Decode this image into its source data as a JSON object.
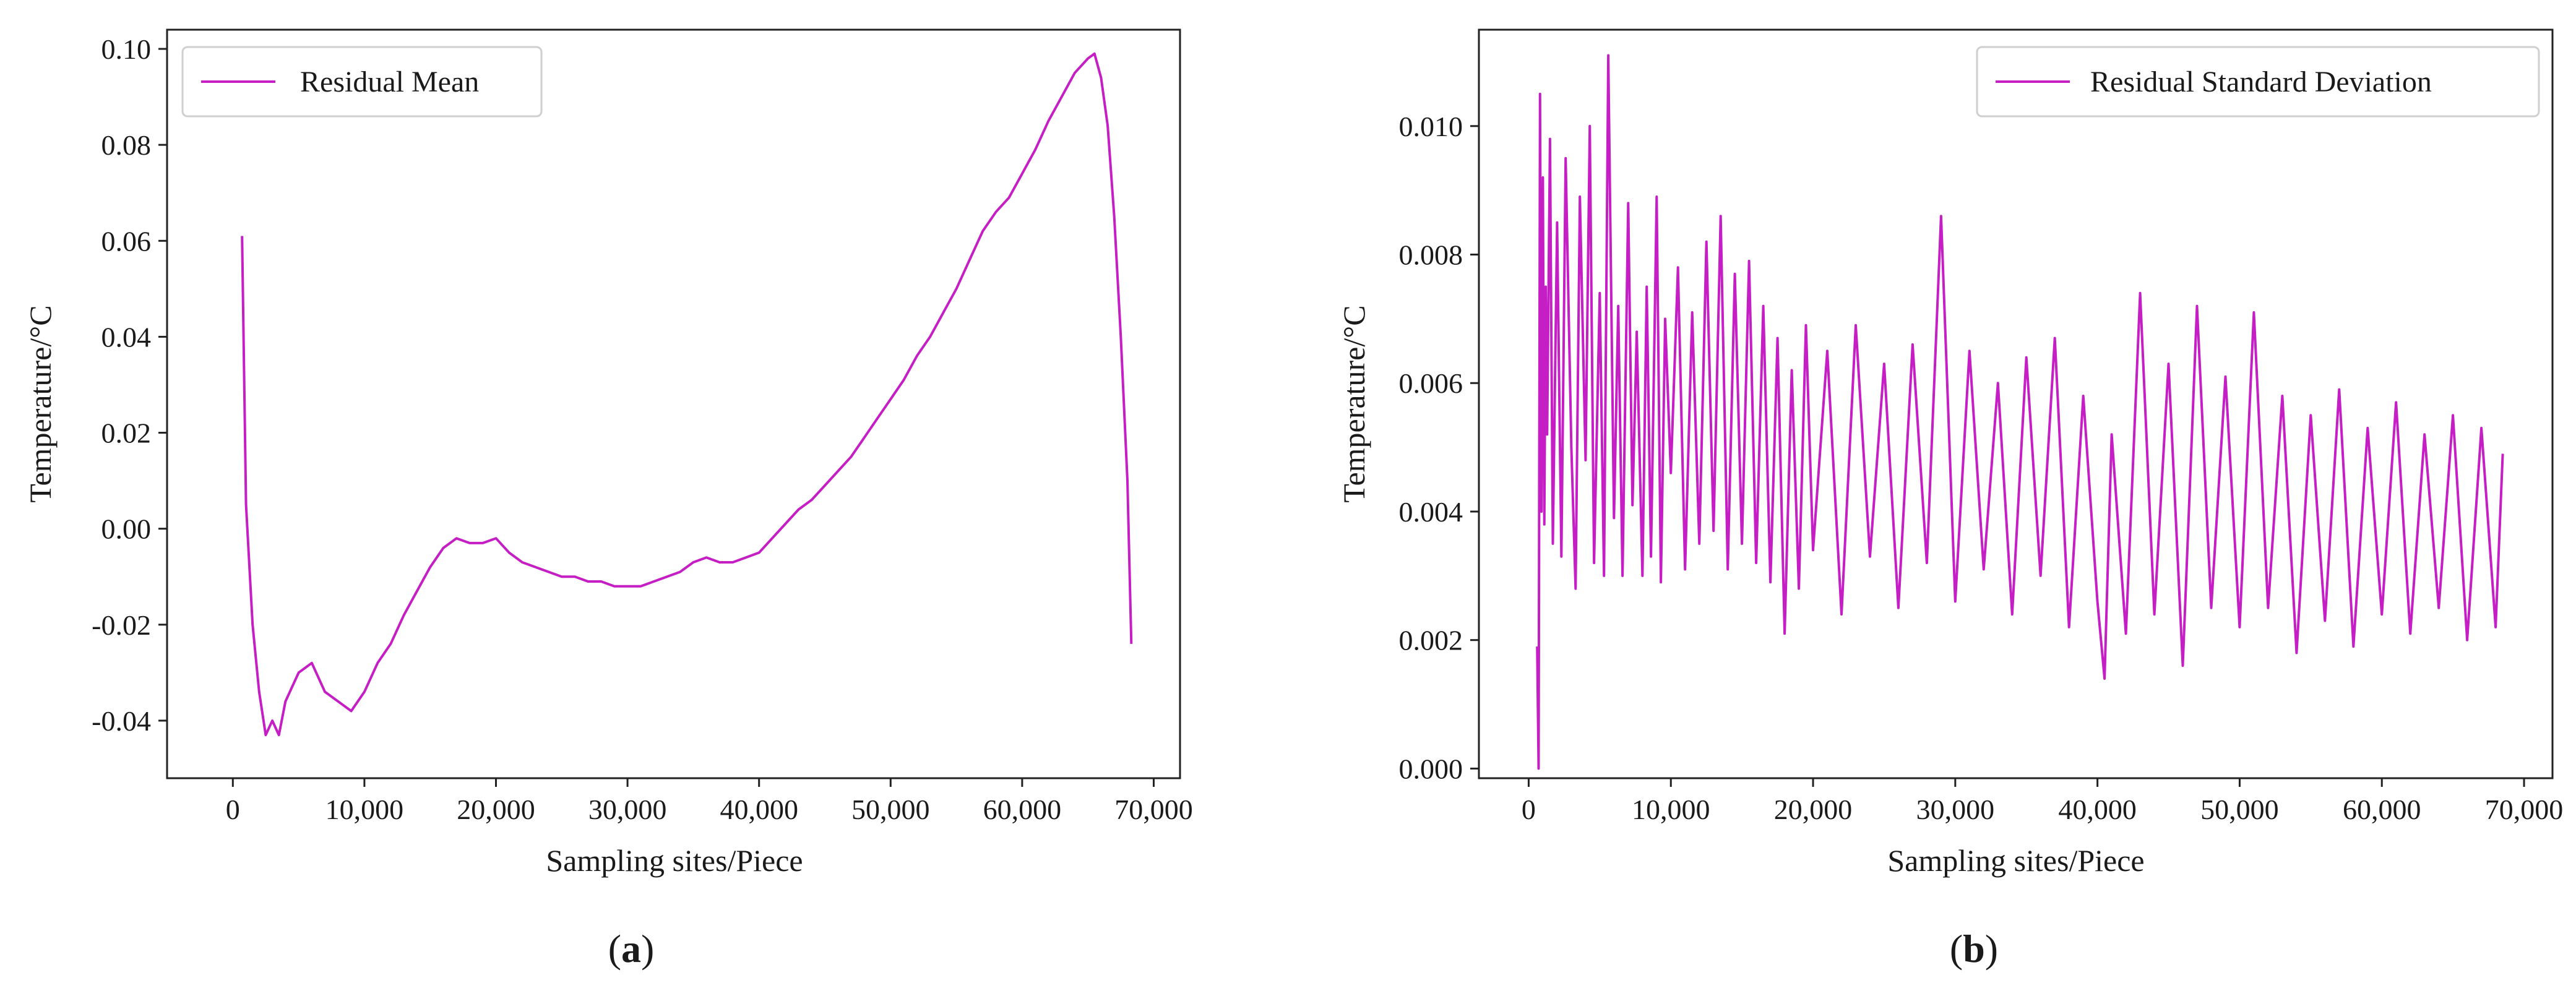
{
  "chart_data": [
    {
      "type": "line",
      "panel_caption": "a",
      "xlabel": "Sampling sites/Piece",
      "ylabel": "Temperature/°C",
      "xlim": [
        -5000,
        72000
      ],
      "ylim": [
        -0.052,
        0.104
      ],
      "xticks": [
        0,
        10000,
        20000,
        30000,
        40000,
        50000,
        60000,
        70000
      ],
      "xtick_labels": [
        "0",
        "10,000",
        "20,000",
        "30,000",
        "40,000",
        "50,000",
        "60,000",
        "70,000"
      ],
      "yticks": [
        -0.04,
        -0.02,
        0.0,
        0.02,
        0.04,
        0.06,
        0.08,
        0.1
      ],
      "ytick_labels": [
        "-0.04",
        "-0.02",
        "0.00",
        "0.02",
        "0.04",
        "0.06",
        "0.08",
        "0.10"
      ],
      "legend_position": "top-left",
      "color": "#c41ec4",
      "series": [
        {
          "name": "Residual Mean",
          "x": [
            700,
            1000,
            1500,
            2000,
            2500,
            3000,
            3500,
            4000,
            5000,
            6000,
            7000,
            8000,
            9000,
            10000,
            11000,
            12000,
            13000,
            14000,
            15000,
            16000,
            17000,
            18000,
            19000,
            20000,
            21000,
            22000,
            23000,
            24000,
            25000,
            26000,
            27000,
            28000,
            29000,
            30000,
            31000,
            32000,
            33000,
            34000,
            35000,
            36000,
            37000,
            38000,
            39000,
            40000,
            41000,
            42000,
            43000,
            44000,
            45000,
            46000,
            47000,
            48000,
            49000,
            50000,
            51000,
            52000,
            53000,
            54000,
            55000,
            56000,
            57000,
            58000,
            59000,
            60000,
            61000,
            62000,
            63000,
            64000,
            65000,
            65500,
            66000,
            66500,
            67000,
            67500,
            68000,
            68300
          ],
          "y": [
            0.061,
            0.005,
            -0.02,
            -0.034,
            -0.043,
            -0.04,
            -0.043,
            -0.036,
            -0.03,
            -0.028,
            -0.034,
            -0.036,
            -0.038,
            -0.034,
            -0.028,
            -0.024,
            -0.018,
            -0.013,
            -0.008,
            -0.004,
            -0.002,
            -0.003,
            -0.003,
            -0.002,
            -0.005,
            -0.007,
            -0.008,
            -0.009,
            -0.01,
            -0.01,
            -0.011,
            -0.011,
            -0.012,
            -0.012,
            -0.012,
            -0.011,
            -0.01,
            -0.009,
            -0.007,
            -0.006,
            -0.007,
            -0.007,
            -0.006,
            -0.005,
            -0.002,
            0.001,
            0.004,
            0.006,
            0.009,
            0.012,
            0.015,
            0.019,
            0.023,
            0.027,
            0.031,
            0.036,
            0.04,
            0.045,
            0.05,
            0.056,
            0.062,
            0.066,
            0.069,
            0.074,
            0.079,
            0.085,
            0.09,
            0.095,
            0.098,
            0.099,
            0.094,
            0.084,
            0.065,
            0.04,
            0.01,
            -0.024
          ]
        }
      ]
    },
    {
      "type": "line",
      "panel_caption": "b",
      "xlabel": "Sampling sites/Piece",
      "ylabel": "Temperature/°C",
      "xlim": [
        -3500,
        72000
      ],
      "ylim": [
        -0.00015,
        0.0115
      ],
      "xticks": [
        0,
        10000,
        20000,
        30000,
        40000,
        50000,
        60000,
        70000
      ],
      "xtick_labels": [
        "0",
        "10,000",
        "20,000",
        "30,000",
        "40,000",
        "50,000",
        "60,000",
        "70,000"
      ],
      "yticks": [
        0.0,
        0.002,
        0.004,
        0.006,
        0.008,
        0.01
      ],
      "ytick_labels": [
        "0.000",
        "0.002",
        "0.004",
        "0.006",
        "0.008",
        "0.010"
      ],
      "legend_position": "top-right",
      "color": "#c41ec4",
      "series": [
        {
          "name": "Residual Standard Deviation",
          "x": [
            600,
            700,
            800,
            900,
            1000,
            1100,
            1200,
            1300,
            1500,
            1700,
            2000,
            2300,
            2600,
            3000,
            3300,
            3600,
            4000,
            4300,
            4600,
            5000,
            5300,
            5600,
            6000,
            6300,
            6600,
            7000,
            7300,
            7600,
            8000,
            8300,
            8600,
            9000,
            9300,
            9600,
            10000,
            10500,
            11000,
            11500,
            12000,
            12500,
            13000,
            13500,
            14000,
            14500,
            15000,
            15500,
            16000,
            16500,
            17000,
            17500,
            18000,
            18500,
            19000,
            19500,
            20000,
            21000,
            22000,
            23000,
            24000,
            25000,
            26000,
            27000,
            28000,
            29000,
            30000,
            31000,
            32000,
            33000,
            34000,
            35000,
            36000,
            37000,
            38000,
            39000,
            40000,
            40500,
            41000,
            42000,
            43000,
            44000,
            45000,
            46000,
            47000,
            48000,
            49000,
            50000,
            51000,
            52000,
            53000,
            54000,
            55000,
            56000,
            57000,
            58000,
            59000,
            60000,
            61000,
            62000,
            63000,
            64000,
            65000,
            66000,
            67000,
            68000,
            68500
          ],
          "y": [
            0.0019,
            0.0,
            0.0105,
            0.004,
            0.0092,
            0.0038,
            0.0075,
            0.0052,
            0.0098,
            0.0035,
            0.0085,
            0.0033,
            0.0095,
            0.005,
            0.0028,
            0.0089,
            0.0048,
            0.01,
            0.0032,
            0.0074,
            0.003,
            0.0111,
            0.0039,
            0.0072,
            0.003,
            0.0088,
            0.0041,
            0.0068,
            0.003,
            0.0075,
            0.0033,
            0.0089,
            0.0029,
            0.007,
            0.0046,
            0.0078,
            0.0031,
            0.0071,
            0.0035,
            0.0082,
            0.0037,
            0.0086,
            0.0031,
            0.0077,
            0.0035,
            0.0079,
            0.0032,
            0.0072,
            0.0029,
            0.0067,
            0.0021,
            0.0062,
            0.0028,
            0.0069,
            0.0034,
            0.0065,
            0.0024,
            0.0069,
            0.0033,
            0.0063,
            0.0025,
            0.0066,
            0.0032,
            0.0086,
            0.0026,
            0.0065,
            0.0031,
            0.006,
            0.0024,
            0.0064,
            0.003,
            0.0067,
            0.0022,
            0.0058,
            0.0026,
            0.0014,
            0.0052,
            0.0021,
            0.0074,
            0.0024,
            0.0063,
            0.0016,
            0.0072,
            0.0025,
            0.0061,
            0.0022,
            0.0071,
            0.0025,
            0.0058,
            0.0018,
            0.0055,
            0.0023,
            0.0059,
            0.0019,
            0.0053,
            0.0024,
            0.0057,
            0.0021,
            0.0052,
            0.0025,
            0.0055,
            0.002,
            0.0053,
            0.0022,
            0.0049
          ]
        }
      ]
    }
  ]
}
